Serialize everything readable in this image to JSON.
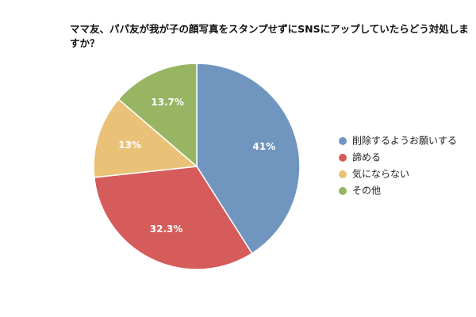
{
  "chart_data": {
    "type": "pie",
    "title": "ママ友、パパ友が我が子の顔写真をスタンプせずにSNSにアップしていたらどう対処しますか？",
    "categories": [
      "削除するようお願いする",
      "諦める",
      "気にならない",
      "その他"
    ],
    "values": [
      41,
      32.3,
      13,
      13.7
    ],
    "value_labels": [
      "41%",
      "32.3%",
      "13%",
      "13.7%"
    ],
    "colors": [
      "#7096c0",
      "#d55c5a",
      "#e9c278",
      "#97b563"
    ],
    "legend": "right"
  }
}
